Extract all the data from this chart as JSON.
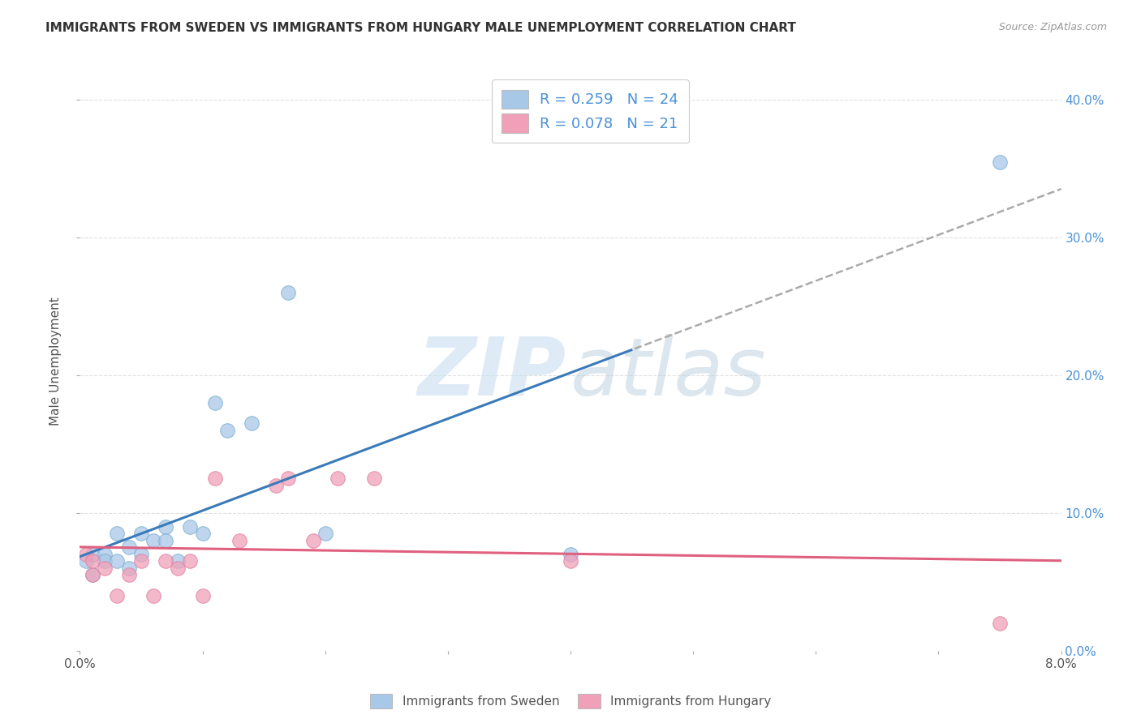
{
  "title": "IMMIGRANTS FROM SWEDEN VS IMMIGRANTS FROM HUNGARY MALE UNEMPLOYMENT CORRELATION CHART",
  "source": "Source: ZipAtlas.com",
  "ylabel": "Male Unemployment",
  "legend_label1": "Immigrants from Sweden",
  "legend_label2": "Immigrants from Hungary",
  "blue_color": "#a8c8e8",
  "pink_color": "#f0a0b8",
  "blue_line_color": "#3a7aba",
  "pink_line_color": "#e06080",
  "text_color": "#4a90d9",
  "title_color": "#333333",
  "sweden_x": [
    0.0005,
    0.001,
    0.001,
    0.002,
    0.002,
    0.003,
    0.003,
    0.004,
    0.004,
    0.005,
    0.005,
    0.006,
    0.007,
    0.007,
    0.008,
    0.009,
    0.01,
    0.011,
    0.012,
    0.014,
    0.017,
    0.02,
    0.04,
    0.075
  ],
  "sweden_y": [
    0.065,
    0.07,
    0.055,
    0.07,
    0.065,
    0.085,
    0.065,
    0.075,
    0.06,
    0.085,
    0.07,
    0.08,
    0.09,
    0.08,
    0.065,
    0.09,
    0.085,
    0.18,
    0.16,
    0.165,
    0.26,
    0.085,
    0.07,
    0.355
  ],
  "hungary_x": [
    0.0005,
    0.001,
    0.001,
    0.002,
    0.003,
    0.004,
    0.005,
    0.006,
    0.007,
    0.008,
    0.009,
    0.01,
    0.011,
    0.013,
    0.016,
    0.017,
    0.019,
    0.021,
    0.024,
    0.04,
    0.075
  ],
  "hungary_y": [
    0.07,
    0.055,
    0.065,
    0.06,
    0.04,
    0.055,
    0.065,
    0.04,
    0.065,
    0.06,
    0.065,
    0.04,
    0.125,
    0.08,
    0.12,
    0.125,
    0.08,
    0.125,
    0.125,
    0.065,
    0.02
  ],
  "xmin": 0.0,
  "xmax": 0.08,
  "ymin": 0.0,
  "ymax": 0.42,
  "xtick_positions": [
    0.0,
    0.01,
    0.02,
    0.03,
    0.04,
    0.05,
    0.06,
    0.07,
    0.08
  ],
  "ytick_positions": [
    0.0,
    0.1,
    0.2,
    0.3,
    0.4
  ],
  "background": "#ffffff",
  "grid_color": "#e0e0e0",
  "dashed_line_color": "#aaaaaa"
}
